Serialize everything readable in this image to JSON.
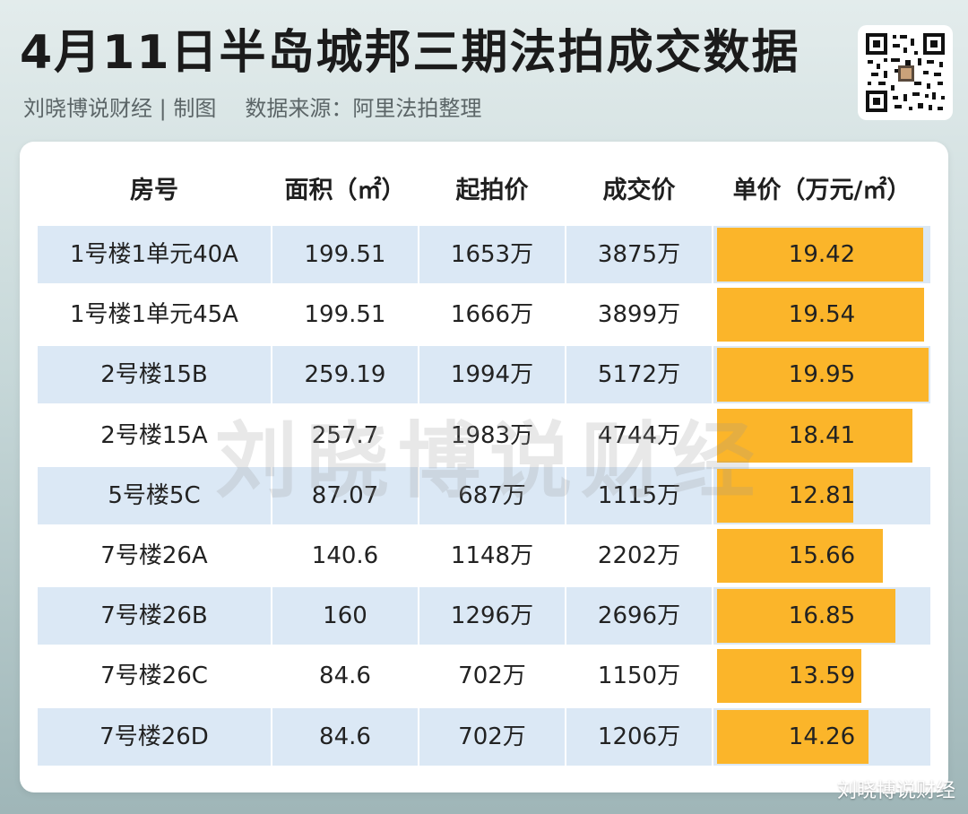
{
  "header": {
    "title": "4月11日半岛城邦三期法拍成交数据",
    "author": "刘晓博说财经 | 制图",
    "source": "数据来源：阿里法拍整理"
  },
  "qr_code": {
    "icon": "qr-code-icon"
  },
  "watermark": "刘晓博说财经",
  "corner_watermark": "刘晓博说财经",
  "colors": {
    "bar": "#fbb52a",
    "stripe": "#dbe8f5",
    "card": "#ffffff"
  },
  "chart_data": {
    "type": "table",
    "columns": [
      "房号",
      "面积（㎡）",
      "起拍价",
      "成交价",
      "单价（万元/㎡）"
    ],
    "rows": [
      [
        "1号楼1单元40A",
        "199.51",
        "1653万",
        "3875万",
        "19.42"
      ],
      [
        "1号楼1单元45A",
        "199.51",
        "1666万",
        "3899万",
        "19.54"
      ],
      [
        "2号楼15B",
        "259.19",
        "1994万",
        "5172万",
        "19.95"
      ],
      [
        "2号楼15A",
        "257.7",
        "1983万",
        "4744万",
        "18.41"
      ],
      [
        "5号楼5C",
        "87.07",
        "687万",
        "1115万",
        "12.81"
      ],
      [
        "7号楼26A",
        "140.6",
        "1148万",
        "2202万",
        "15.66"
      ],
      [
        "7号楼26B",
        "160",
        "1296万",
        "2696万",
        "16.85"
      ],
      [
        "7号楼26C",
        "84.6",
        "702万",
        "1150万",
        "13.59"
      ],
      [
        "7号楼26D",
        "84.6",
        "702万",
        "1206万",
        "14.26"
      ]
    ],
    "bar_column": 4,
    "bar_values": [
      19.42,
      19.54,
      19.95,
      18.41,
      12.81,
      15.66,
      16.85,
      13.59,
      14.26
    ],
    "bar_max": 19.95
  }
}
